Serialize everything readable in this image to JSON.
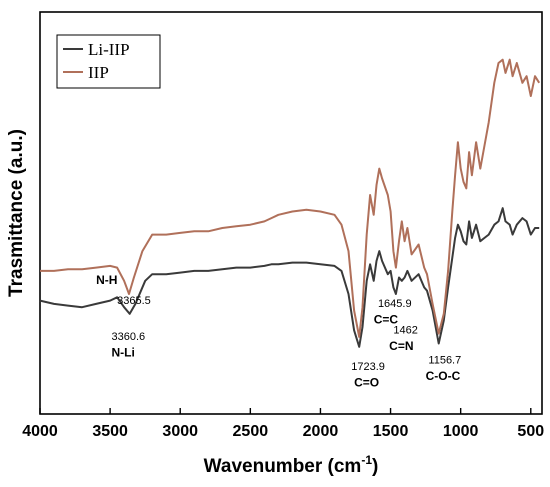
{
  "chart_data": {
    "type": "line",
    "xlabel": "Wavenumber (cm",
    "xlabel_sup": "-1",
    "xlabel_end": ")",
    "ylabel": "Trasmittance (a.u.)",
    "xlim": [
      4000,
      420
    ],
    "x_reversed": true,
    "ylim": [
      0,
      100
    ],
    "xticks": [
      4000,
      3500,
      3000,
      2500,
      2000,
      1500,
      1000,
      500
    ],
    "legend_position": "top-left",
    "series": [
      {
        "name": "Li-IIP",
        "color": "#3a3a3a",
        "points": [
          [
            4000,
            18
          ],
          [
            3900,
            17
          ],
          [
            3800,
            16.5
          ],
          [
            3700,
            16
          ],
          [
            3600,
            17
          ],
          [
            3500,
            18
          ],
          [
            3450,
            19
          ],
          [
            3400,
            16
          ],
          [
            3360.6,
            14
          ],
          [
            3320,
            17
          ],
          [
            3250,
            24
          ],
          [
            3200,
            26
          ],
          [
            3100,
            26
          ],
          [
            3000,
            26.5
          ],
          [
            2900,
            27
          ],
          [
            2800,
            27
          ],
          [
            2700,
            27.5
          ],
          [
            2600,
            28
          ],
          [
            2500,
            28
          ],
          [
            2400,
            28.5
          ],
          [
            2350,
            29
          ],
          [
            2300,
            29
          ],
          [
            2200,
            29.5
          ],
          [
            2100,
            29.5
          ],
          [
            2000,
            29
          ],
          [
            1900,
            28.5
          ],
          [
            1850,
            27
          ],
          [
            1800,
            20
          ],
          [
            1760,
            9
          ],
          [
            1723.9,
            4
          ],
          [
            1700,
            10
          ],
          [
            1670,
            24
          ],
          [
            1645.9,
            29
          ],
          [
            1620,
            24
          ],
          [
            1600,
            30
          ],
          [
            1580,
            33
          ],
          [
            1560,
            30
          ],
          [
            1520,
            26
          ],
          [
            1500,
            27
          ],
          [
            1480,
            22
          ],
          [
            1462,
            20
          ],
          [
            1440,
            25
          ],
          [
            1420,
            24
          ],
          [
            1400,
            25
          ],
          [
            1380,
            27
          ],
          [
            1350,
            24
          ],
          [
            1300,
            26
          ],
          [
            1260,
            22
          ],
          [
            1240,
            21
          ],
          [
            1200,
            15
          ],
          [
            1156.7,
            5
          ],
          [
            1120,
            12
          ],
          [
            1090,
            22
          ],
          [
            1060,
            31
          ],
          [
            1040,
            37
          ],
          [
            1020,
            41
          ],
          [
            1000,
            39
          ],
          [
            980,
            36
          ],
          [
            960,
            35
          ],
          [
            940,
            42
          ],
          [
            920,
            37
          ],
          [
            890,
            41
          ],
          [
            860,
            36
          ],
          [
            830,
            37
          ],
          [
            800,
            38
          ],
          [
            760,
            41
          ],
          [
            730,
            42
          ],
          [
            700,
            46
          ],
          [
            680,
            42
          ],
          [
            650,
            41
          ],
          [
            630,
            38
          ],
          [
            600,
            41
          ],
          [
            560,
            43
          ],
          [
            530,
            42
          ],
          [
            500,
            38
          ],
          [
            470,
            40
          ],
          [
            440,
            40
          ]
        ]
      },
      {
        "name": "IIP",
        "color": "#b0705a",
        "points": [
          [
            4000,
            27
          ],
          [
            3900,
            27
          ],
          [
            3800,
            27.5
          ],
          [
            3700,
            27.5
          ],
          [
            3600,
            28
          ],
          [
            3500,
            28.5
          ],
          [
            3450,
            28
          ],
          [
            3400,
            24
          ],
          [
            3365.5,
            20
          ],
          [
            3330,
            25
          ],
          [
            3270,
            33
          ],
          [
            3200,
            38
          ],
          [
            3100,
            38
          ],
          [
            3000,
            38.5
          ],
          [
            2900,
            39
          ],
          [
            2800,
            39
          ],
          [
            2700,
            40
          ],
          [
            2600,
            40.5
          ],
          [
            2500,
            41
          ],
          [
            2400,
            42
          ],
          [
            2350,
            43
          ],
          [
            2300,
            44
          ],
          [
            2200,
            45
          ],
          [
            2100,
            45.5
          ],
          [
            2000,
            45
          ],
          [
            1900,
            44
          ],
          [
            1850,
            41
          ],
          [
            1800,
            33
          ],
          [
            1760,
            15
          ],
          [
            1723.9,
            7
          ],
          [
            1700,
            16
          ],
          [
            1670,
            38
          ],
          [
            1645.9,
            50
          ],
          [
            1620,
            44
          ],
          [
            1600,
            53
          ],
          [
            1580,
            58
          ],
          [
            1560,
            55
          ],
          [
            1520,
            50
          ],
          [
            1500,
            45
          ],
          [
            1480,
            33
          ],
          [
            1462,
            28
          ],
          [
            1440,
            36
          ],
          [
            1420,
            42
          ],
          [
            1400,
            36
          ],
          [
            1380,
            40
          ],
          [
            1350,
            32
          ],
          [
            1300,
            35
          ],
          [
            1260,
            28
          ],
          [
            1240,
            26
          ],
          [
            1200,
            17
          ],
          [
            1156.7,
            8
          ],
          [
            1120,
            14
          ],
          [
            1090,
            27
          ],
          [
            1060,
            45
          ],
          [
            1040,
            56
          ],
          [
            1020,
            66
          ],
          [
            1000,
            58
          ],
          [
            980,
            54
          ],
          [
            960,
            52
          ],
          [
            940,
            63
          ],
          [
            920,
            56
          ],
          [
            890,
            66
          ],
          [
            860,
            58
          ],
          [
            830,
            65
          ],
          [
            800,
            72
          ],
          [
            760,
            84
          ],
          [
            730,
            90
          ],
          [
            700,
            91
          ],
          [
            680,
            87
          ],
          [
            650,
            91
          ],
          [
            630,
            86
          ],
          [
            600,
            90
          ],
          [
            560,
            84
          ],
          [
            530,
            86
          ],
          [
            500,
            80
          ],
          [
            470,
            86
          ],
          [
            440,
            84
          ]
        ]
      }
    ],
    "annotations": [
      {
        "text": "N-H",
        "x": 3600,
        "y": 23,
        "style": "bond-brown"
      },
      {
        "text": "3365.5",
        "x": 3450,
        "y": 17,
        "style": "num"
      },
      {
        "text": "3360.6",
        "x": 3490,
        "y": 6,
        "style": "num"
      },
      {
        "text": "N-Li",
        "x": 3490,
        "y": 1,
        "style": "bond"
      },
      {
        "text": "1723.9",
        "x": 1780,
        "y": -3,
        "style": "num"
      },
      {
        "text": "C=O",
        "x": 1760,
        "y": -8,
        "style": "bond"
      },
      {
        "text": "1645.9",
        "x": 1590,
        "y": 16,
        "style": "num"
      },
      {
        "text": "C=C",
        "x": 1620,
        "y": 11,
        "style": "bond"
      },
      {
        "text": "1462",
        "x": 1480,
        "y": 8,
        "style": "num"
      },
      {
        "text": "C=N",
        "x": 1510,
        "y": 3,
        "style": "bond"
      },
      {
        "text": "1156.7",
        "x": 1230,
        "y": -1,
        "style": "num"
      },
      {
        "text": "C-O-C",
        "x": 1250,
        "y": -6,
        "style": "bond"
      }
    ]
  }
}
